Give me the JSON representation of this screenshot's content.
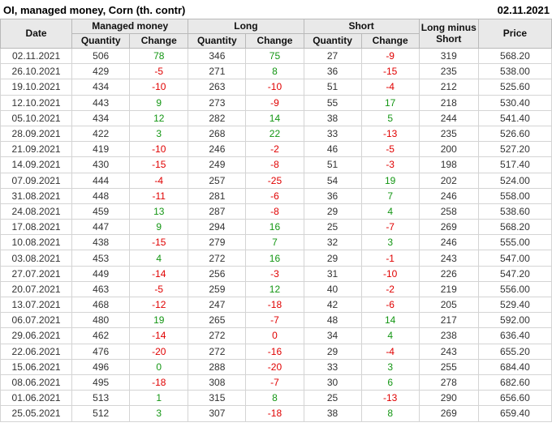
{
  "title": "OI, managed money, Corn (th. contr)",
  "report_date": "02.11.2021",
  "colors": {
    "positive_change": "#149614",
    "negative_change": "#e00000",
    "header_background": "#e9e9e9",
    "grid_line": "#d4d4d4",
    "text": "#333333"
  },
  "table": {
    "headers": {
      "date": "Date",
      "managed_money": "Managed money",
      "long": "Long",
      "short": "Short",
      "long_minus_short": "Long minus Short",
      "price": "Price",
      "quantity": "Quantity",
      "change": "Change"
    },
    "rows": [
      [
        [
          "02.11.2021"
        ],
        [
          "506"
        ],
        [
          "78",
          "pos"
        ],
        [
          "346"
        ],
        [
          "75",
          "pos"
        ],
        [
          "27"
        ],
        [
          "-9",
          "neg"
        ],
        [
          "319"
        ],
        [
          "568.20"
        ]
      ],
      [
        [
          "26.10.2021"
        ],
        [
          "429"
        ],
        [
          "-5",
          "neg"
        ],
        [
          "271"
        ],
        [
          "8",
          "pos"
        ],
        [
          "36"
        ],
        [
          "-15",
          "neg"
        ],
        [
          "235"
        ],
        [
          "538.00"
        ]
      ],
      [
        [
          "19.10.2021"
        ],
        [
          "434"
        ],
        [
          "-10",
          "neg"
        ],
        [
          "263"
        ],
        [
          "-10",
          "neg"
        ],
        [
          "51"
        ],
        [
          "-4",
          "neg"
        ],
        [
          "212"
        ],
        [
          "525.60"
        ]
      ],
      [
        [
          "12.10.2021"
        ],
        [
          "443"
        ],
        [
          "9",
          "pos"
        ],
        [
          "273"
        ],
        [
          "-9",
          "neg"
        ],
        [
          "55"
        ],
        [
          "17",
          "pos"
        ],
        [
          "218"
        ],
        [
          "530.40"
        ]
      ],
      [
        [
          "05.10.2021"
        ],
        [
          "434"
        ],
        [
          "12",
          "pos"
        ],
        [
          "282"
        ],
        [
          "14",
          "pos"
        ],
        [
          "38"
        ],
        [
          "5",
          "pos"
        ],
        [
          "244"
        ],
        [
          "541.40"
        ]
      ],
      [
        [
          "28.09.2021"
        ],
        [
          "422"
        ],
        [
          "3",
          "pos"
        ],
        [
          "268"
        ],
        [
          "22",
          "pos"
        ],
        [
          "33"
        ],
        [
          "-13",
          "neg"
        ],
        [
          "235"
        ],
        [
          "526.60"
        ]
      ],
      [
        [
          "21.09.2021"
        ],
        [
          "419"
        ],
        [
          "-10",
          "neg"
        ],
        [
          "246"
        ],
        [
          "-2",
          "neg"
        ],
        [
          "46"
        ],
        [
          "-5",
          "neg"
        ],
        [
          "200"
        ],
        [
          "527.20"
        ]
      ],
      [
        [
          "14.09.2021"
        ],
        [
          "430"
        ],
        [
          "-15",
          "neg"
        ],
        [
          "249"
        ],
        [
          "-8",
          "neg"
        ],
        [
          "51"
        ],
        [
          "-3",
          "neg"
        ],
        [
          "198"
        ],
        [
          "517.40"
        ]
      ],
      [
        [
          "07.09.2021"
        ],
        [
          "444"
        ],
        [
          "-4",
          "neg"
        ],
        [
          "257"
        ],
        [
          "-25",
          "neg"
        ],
        [
          "54"
        ],
        [
          "19",
          "pos"
        ],
        [
          "202"
        ],
        [
          "524.00"
        ]
      ],
      [
        [
          "31.08.2021"
        ],
        [
          "448"
        ],
        [
          "-11",
          "neg"
        ],
        [
          "281"
        ],
        [
          "-6",
          "neg"
        ],
        [
          "36"
        ],
        [
          "7",
          "pos"
        ],
        [
          "246"
        ],
        [
          "558.00"
        ]
      ],
      [
        [
          "24.08.2021"
        ],
        [
          "459"
        ],
        [
          "13",
          "pos"
        ],
        [
          "287"
        ],
        [
          "-8",
          "neg"
        ],
        [
          "29"
        ],
        [
          "4",
          "pos"
        ],
        [
          "258"
        ],
        [
          "538.60"
        ]
      ],
      [
        [
          "17.08.2021"
        ],
        [
          "447"
        ],
        [
          "9",
          "pos"
        ],
        [
          "294"
        ],
        [
          "16",
          "pos"
        ],
        [
          "25"
        ],
        [
          "-7",
          "neg"
        ],
        [
          "269"
        ],
        [
          "568.20"
        ]
      ],
      [
        [
          "10.08.2021"
        ],
        [
          "438"
        ],
        [
          "-15",
          "neg"
        ],
        [
          "279"
        ],
        [
          "7",
          "pos"
        ],
        [
          "32"
        ],
        [
          "3",
          "pos"
        ],
        [
          "246"
        ],
        [
          "555.00"
        ]
      ],
      [
        [
          "03.08.2021"
        ],
        [
          "453"
        ],
        [
          "4",
          "pos"
        ],
        [
          "272"
        ],
        [
          "16",
          "pos"
        ],
        [
          "29"
        ],
        [
          "-1",
          "neg"
        ],
        [
          "243"
        ],
        [
          "547.00"
        ]
      ],
      [
        [
          "27.07.2021"
        ],
        [
          "449"
        ],
        [
          "-14",
          "neg"
        ],
        [
          "256"
        ],
        [
          "-3",
          "neg"
        ],
        [
          "31"
        ],
        [
          "-10",
          "neg"
        ],
        [
          "226"
        ],
        [
          "547.20"
        ]
      ],
      [
        [
          "20.07.2021"
        ],
        [
          "463"
        ],
        [
          "-5",
          "neg"
        ],
        [
          "259"
        ],
        [
          "12",
          "pos"
        ],
        [
          "40"
        ],
        [
          "-2",
          "neg"
        ],
        [
          "219"
        ],
        [
          "556.00"
        ]
      ],
      [
        [
          "13.07.2021"
        ],
        [
          "468"
        ],
        [
          "-12",
          "neg"
        ],
        [
          "247"
        ],
        [
          "-18",
          "neg"
        ],
        [
          "42"
        ],
        [
          "-6",
          "neg"
        ],
        [
          "205"
        ],
        [
          "529.40"
        ]
      ],
      [
        [
          "06.07.2021"
        ],
        [
          "480"
        ],
        [
          "19",
          "pos"
        ],
        [
          "265"
        ],
        [
          "-7",
          "neg"
        ],
        [
          "48"
        ],
        [
          "14",
          "pos"
        ],
        [
          "217"
        ],
        [
          "592.00"
        ]
      ],
      [
        [
          "29.06.2021"
        ],
        [
          "462"
        ],
        [
          "-14",
          "neg"
        ],
        [
          "272"
        ],
        [
          "0",
          "neg"
        ],
        [
          "34"
        ],
        [
          "4",
          "pos"
        ],
        [
          "238"
        ],
        [
          "636.40"
        ]
      ],
      [
        [
          "22.06.2021"
        ],
        [
          "476"
        ],
        [
          "-20",
          "neg"
        ],
        [
          "272"
        ],
        [
          "-16",
          "neg"
        ],
        [
          "29"
        ],
        [
          "-4",
          "neg"
        ],
        [
          "243"
        ],
        [
          "655.20"
        ]
      ],
      [
        [
          "15.06.2021"
        ],
        [
          "496"
        ],
        [
          "0",
          "pos"
        ],
        [
          "288"
        ],
        [
          "-20",
          "neg"
        ],
        [
          "33"
        ],
        [
          "3",
          "pos"
        ],
        [
          "255"
        ],
        [
          "684.40"
        ]
      ],
      [
        [
          "08.06.2021"
        ],
        [
          "495"
        ],
        [
          "-18",
          "neg"
        ],
        [
          "308"
        ],
        [
          "-7",
          "neg"
        ],
        [
          "30"
        ],
        [
          "6",
          "pos"
        ],
        [
          "278"
        ],
        [
          "682.60"
        ]
      ],
      [
        [
          "01.06.2021"
        ],
        [
          "513"
        ],
        [
          "1",
          "pos"
        ],
        [
          "315"
        ],
        [
          "8",
          "pos"
        ],
        [
          "25"
        ],
        [
          "-13",
          "neg"
        ],
        [
          "290"
        ],
        [
          "656.60"
        ]
      ],
      [
        [
          "25.05.2021"
        ],
        [
          "512"
        ],
        [
          "3",
          "pos"
        ],
        [
          "307"
        ],
        [
          "-18",
          "neg"
        ],
        [
          "38"
        ],
        [
          "8",
          "pos"
        ],
        [
          "269"
        ],
        [
          "659.40"
        ]
      ]
    ]
  }
}
